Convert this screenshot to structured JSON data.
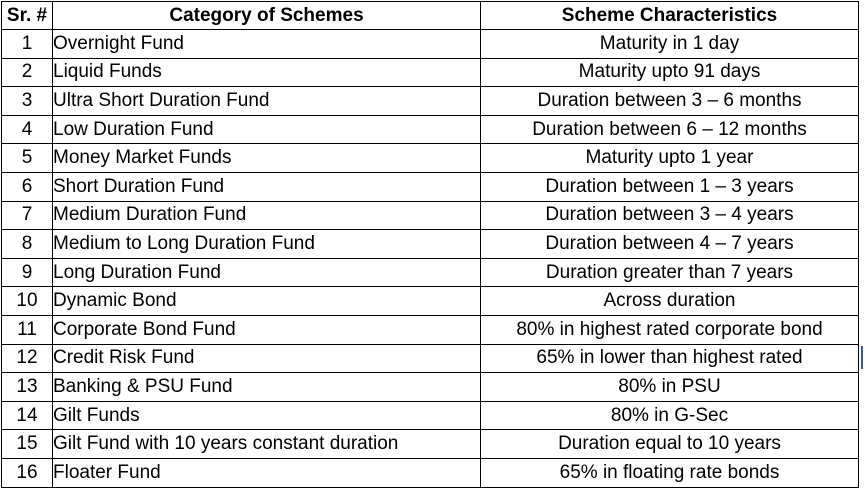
{
  "table": {
    "headers": {
      "sr": "Sr. #",
      "category": "Category of Schemes",
      "characteristics": "Scheme Characteristics"
    },
    "rows": [
      {
        "sr": "1",
        "category": "Overnight Fund",
        "characteristics": "Maturity in 1 day"
      },
      {
        "sr": "2",
        "category": "Liquid Funds",
        "characteristics": "Maturity upto 91 days"
      },
      {
        "sr": "3",
        "category": "Ultra Short Duration Fund",
        "characteristics": "Duration between 3 – 6 months"
      },
      {
        "sr": "4",
        "category": "Low Duration Fund",
        "characteristics": "Duration between 6 – 12 months"
      },
      {
        "sr": "5",
        "category": "Money Market Funds",
        "characteristics": "Maturity upto 1 year"
      },
      {
        "sr": "6",
        "category": "Short Duration Fund",
        "characteristics": "Duration between 1 – 3 years"
      },
      {
        "sr": "7",
        "category": "Medium Duration Fund",
        "characteristics": "Duration between 3 – 4 years"
      },
      {
        "sr": "8",
        "category": "Medium to Long Duration Fund",
        "characteristics": "Duration between 4 – 7 years"
      },
      {
        "sr": "9",
        "category": "Long Duration Fund",
        "characteristics": "Duration greater than 7 years"
      },
      {
        "sr": "10",
        "category": "Dynamic Bond",
        "characteristics": "Across duration"
      },
      {
        "sr": "11",
        "category": "Corporate Bond Fund",
        "characteristics": "80% in highest rated corporate bond"
      },
      {
        "sr": "12",
        "category": "Credit Risk Fund",
        "characteristics": "65% in lower than highest rated"
      },
      {
        "sr": "13",
        "category": "Banking & PSU Fund",
        "characteristics": "80% in PSU"
      },
      {
        "sr": "14",
        "category": "Gilt Funds",
        "characteristics": "80% in G-Sec"
      },
      {
        "sr": "15",
        "category": "Gilt Fund with 10 years constant duration",
        "characteristics": "Duration equal to 10 years"
      },
      {
        "sr": "16",
        "category": "Floater Fund",
        "characteristics": "65% in floating rate bonds"
      }
    ]
  }
}
